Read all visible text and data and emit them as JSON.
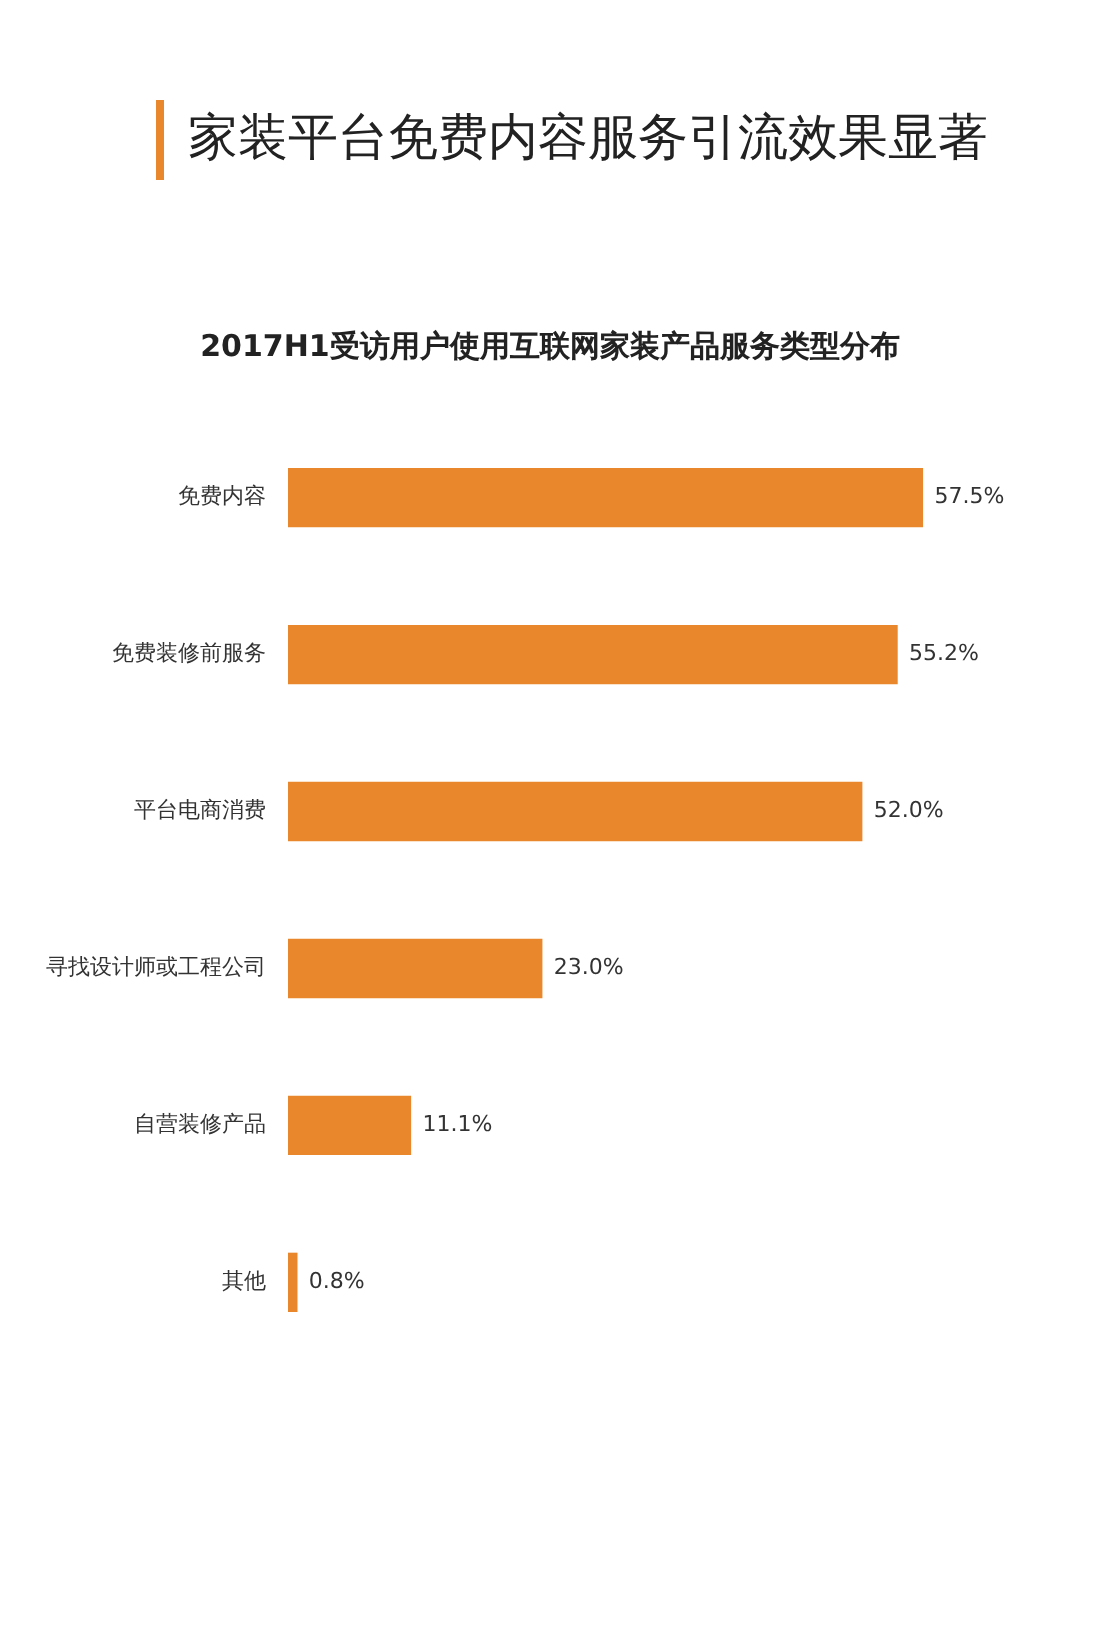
{
  "chart_data": {
    "type": "bar",
    "orientation": "horizontal",
    "title": "家装平台免费内容服务引流效果显著",
    "subtitle": "2017H1受访用户使用互联网家装产品服务类型分布",
    "categories": [
      "免费内容",
      "免费装修前服务",
      "平台电商消费",
      "寻找设计师或工程公司",
      "自营装修产品",
      "其他"
    ],
    "values": [
      57.5,
      55.2,
      52.0,
      23.0,
      11.1,
      0.8
    ],
    "value_labels": [
      "57.5%",
      "55.2%",
      "52.0%",
      "23.0%",
      "11.1%",
      "0.8%"
    ],
    "color": "#e8872c"
  }
}
